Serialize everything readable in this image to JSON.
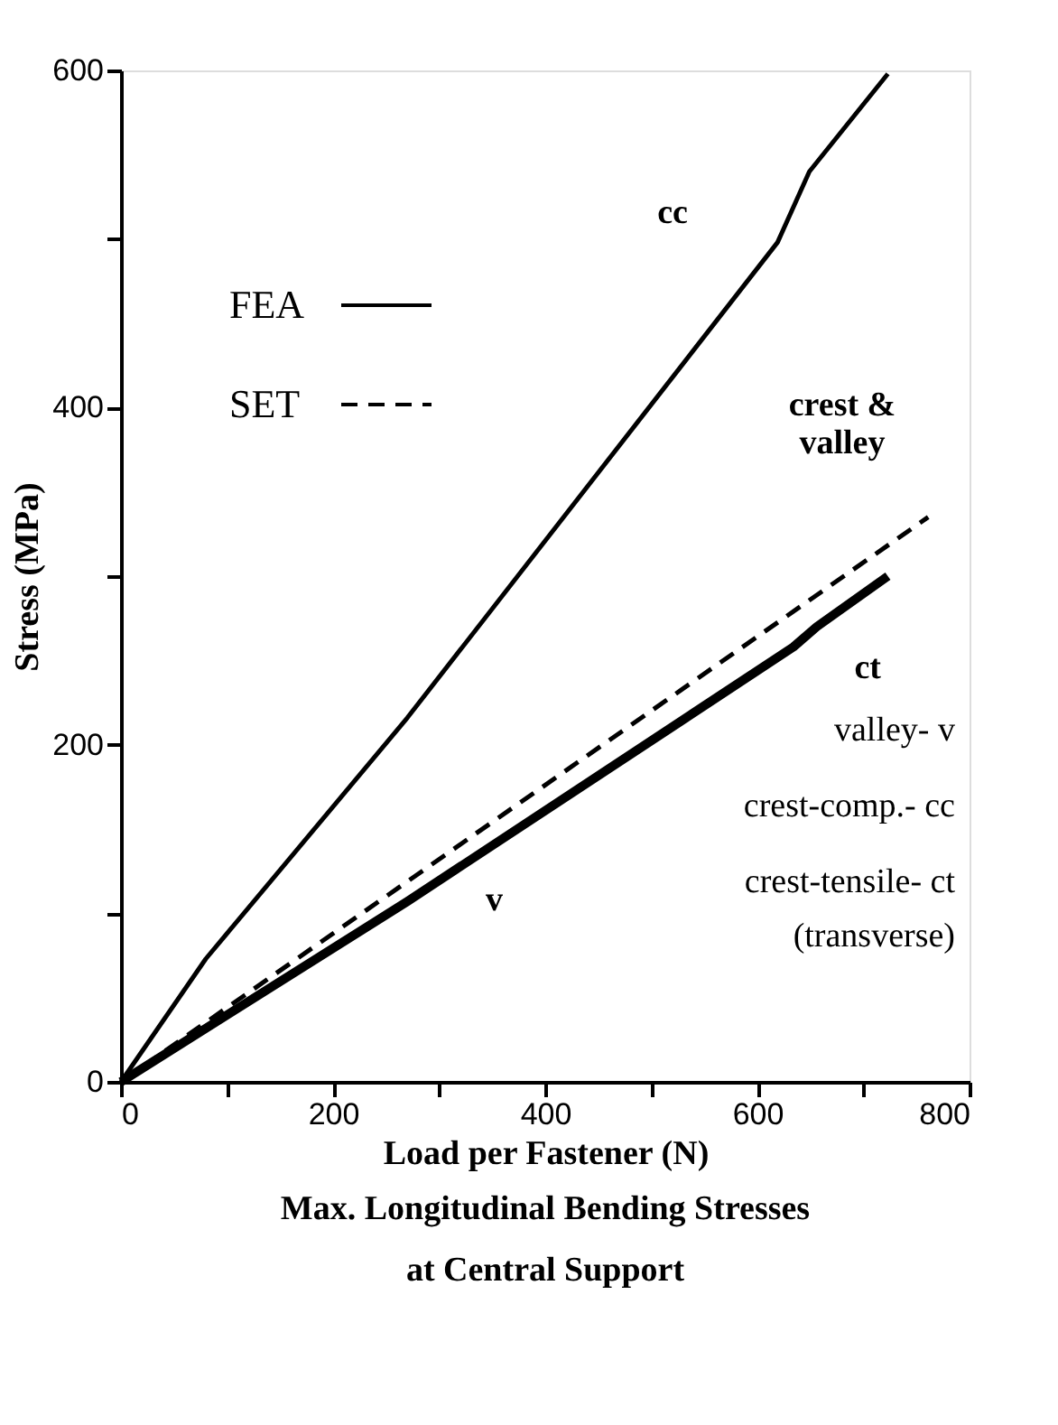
{
  "chart_data": {
    "type": "line",
    "title": [
      "Max. Longitudinal Bending Stresses",
      "at Central Support"
    ],
    "xlabel": "Load per Fastener (N)",
    "ylabel": "Stress (MPa)",
    "xlim": [
      0,
      800
    ],
    "xticks": [
      0,
      {
        "value": 100,
        "label": null
      },
      200,
      {
        "value": 300,
        "label": null
      },
      400,
      {
        "value": 500,
        "label": null
      },
      600,
      {
        "value": 700,
        "label": null
      },
      800
    ],
    "ylim": [
      0,
      600
    ],
    "yticks": [
      0,
      {
        "value": 100,
        "label": null
      },
      200,
      {
        "value": 300,
        "label": null
      },
      400,
      {
        "value": 500,
        "label": null
      },
      600
    ],
    "grid": false,
    "legend": "top left",
    "line_style": "solid",
    "marker": "none",
    "series": [
      {
        "name": "FEA",
        "color": "#000000",
        "x": [
          0,
          80,
          270,
          619,
          649,
          723
        ],
        "values": [
          0,
          73,
          216,
          498,
          540,
          598
        ]
      },
      {
        "color": "#000000",
        "x": [
          0,
          270,
          634,
          656,
          723
        ],
        "values": [
          0,
          107,
          258,
          270,
          300
        ]
      },
      {
        "name": "SET",
        "color": "#000000",
        "line_style": "dashed",
        "x": [
          0,
          761
        ],
        "values": [
          0,
          335
        ]
      }
    ],
    "annotations": [
      "cc",
      "crest &\nvalley",
      "ct",
      "v",
      "valley-  v",
      "crest-comp.-  cc",
      "crest-tensile-  ct",
      "(transverse)"
    ]
  }
}
